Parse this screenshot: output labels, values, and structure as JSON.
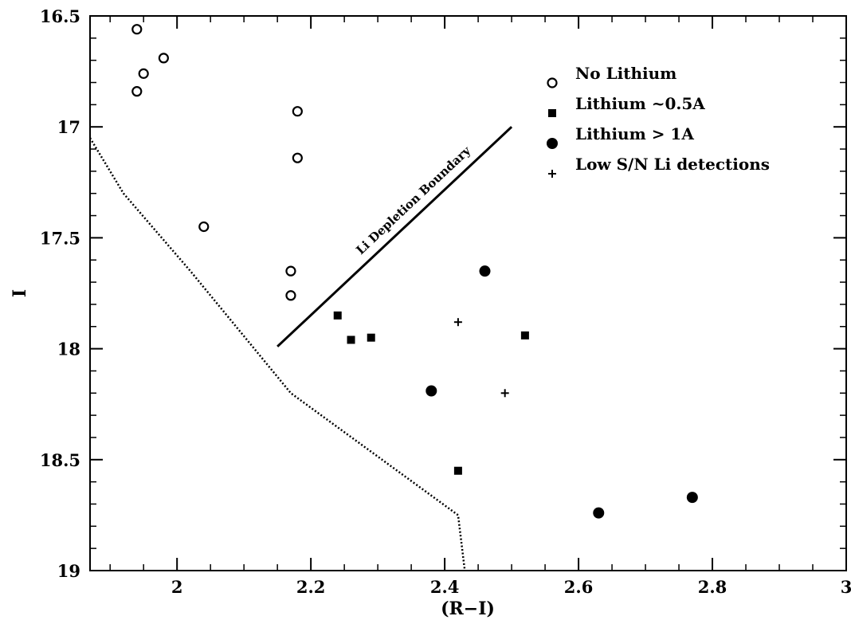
{
  "chart_data": {
    "type": "scatter",
    "title": "",
    "xlabel": "(R−I)",
    "ylabel": "I",
    "xlim": [
      1.87,
      3.0
    ],
    "ylim": [
      16.5,
      19.0
    ],
    "y_inverted": true,
    "x_ticks": [
      "2",
      "2.2",
      "2.4",
      "2.6",
      "2.8",
      "3"
    ],
    "y_ticks": [
      "16.5",
      "17",
      "17.5",
      "18",
      "18.5",
      "19"
    ],
    "legend_position": "top-right",
    "series": [
      {
        "name": "No Lithium",
        "marker": "open-circle",
        "points": [
          {
            "x": 1.94,
            "y": 16.56
          },
          {
            "x": 1.98,
            "y": 16.69
          },
          {
            "x": 1.95,
            "y": 16.76
          },
          {
            "x": 1.94,
            "y": 16.84
          },
          {
            "x": 2.18,
            "y": 16.93
          },
          {
            "x": 2.18,
            "y": 17.14
          },
          {
            "x": 2.04,
            "y": 17.45
          },
          {
            "x": 2.17,
            "y": 17.65
          },
          {
            "x": 2.17,
            "y": 17.76
          }
        ]
      },
      {
        "name": "Lithium ~0.5A",
        "marker": "filled-square",
        "points": [
          {
            "x": 2.24,
            "y": 17.85
          },
          {
            "x": 2.26,
            "y": 17.96
          },
          {
            "x": 2.29,
            "y": 17.95
          },
          {
            "x": 2.52,
            "y": 17.94
          },
          {
            "x": 2.42,
            "y": 18.55
          }
        ]
      },
      {
        "name": "Lithium > 1A",
        "marker": "filled-circle",
        "points": [
          {
            "x": 2.46,
            "y": 17.65
          },
          {
            "x": 2.38,
            "y": 18.19
          },
          {
            "x": 2.63,
            "y": 18.74
          },
          {
            "x": 2.77,
            "y": 18.67
          }
        ]
      },
      {
        "name": "Low S/N Li detections",
        "marker": "plus",
        "points": [
          {
            "x": 2.42,
            "y": 17.88
          },
          {
            "x": 2.49,
            "y": 18.2
          }
        ]
      }
    ],
    "lines": [
      {
        "style": "solid",
        "annotation": "Li Depletion Boundary",
        "points": [
          {
            "x": 2.15,
            "y": 17.99
          },
          {
            "x": 2.5,
            "y": 17.0
          }
        ]
      },
      {
        "style": "dotted",
        "points": [
          {
            "x": 1.87,
            "y": 17.05
          },
          {
            "x": 1.92,
            "y": 17.3
          },
          {
            "x": 2.02,
            "y": 17.65
          },
          {
            "x": 2.17,
            "y": 18.2
          },
          {
            "x": 2.42,
            "y": 18.75
          },
          {
            "x": 2.43,
            "y": 19.0
          }
        ]
      }
    ]
  }
}
